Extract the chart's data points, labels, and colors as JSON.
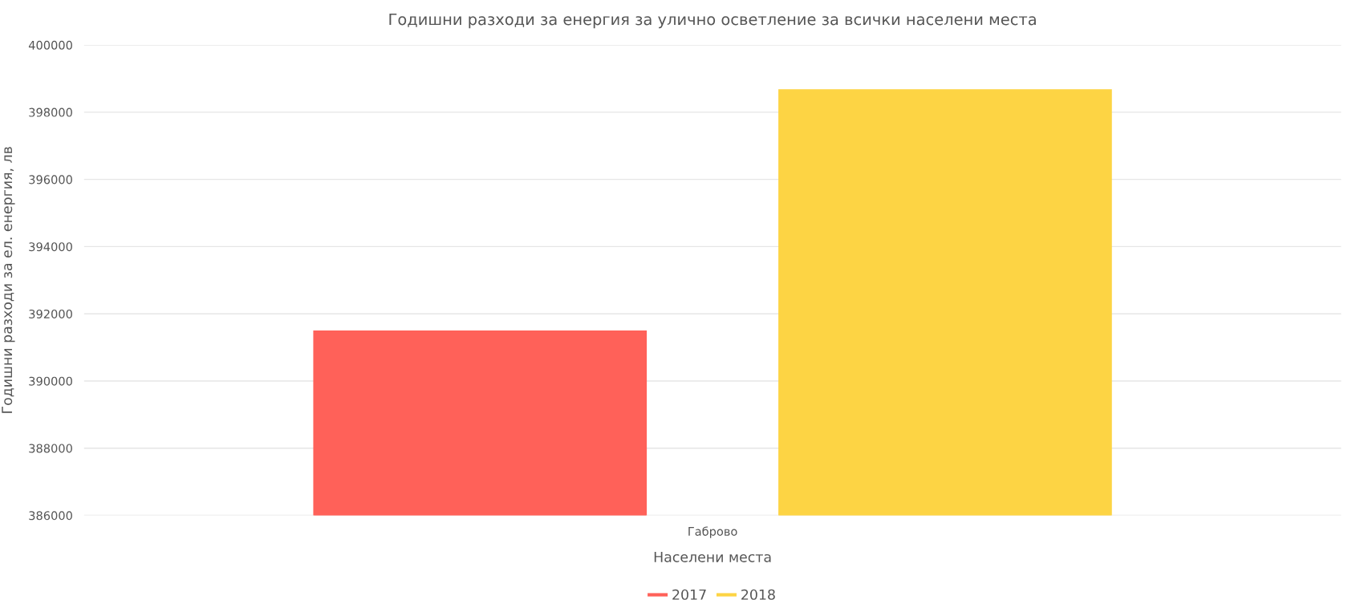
{
  "chart_data": {
    "type": "bar",
    "title": "Годишни разходи за енергия за улично осветление за всички населени места",
    "xlabel": "Населени места",
    "ylabel": "Годишни разходи за ел. енергия, лв",
    "categories": [
      "Габрово"
    ],
    "series": [
      {
        "name": "2017",
        "color": "#ff6159",
        "values": [
          391480
        ]
      },
      {
        "name": "2018",
        "color": "#fdd444",
        "values": [
          398660
        ]
      }
    ],
    "ylim": [
      386000,
      400000
    ],
    "yticks": [
      386000,
      388000,
      390000,
      392000,
      394000,
      396000,
      398000,
      400000
    ],
    "grid": "y",
    "legend": "bottom"
  }
}
